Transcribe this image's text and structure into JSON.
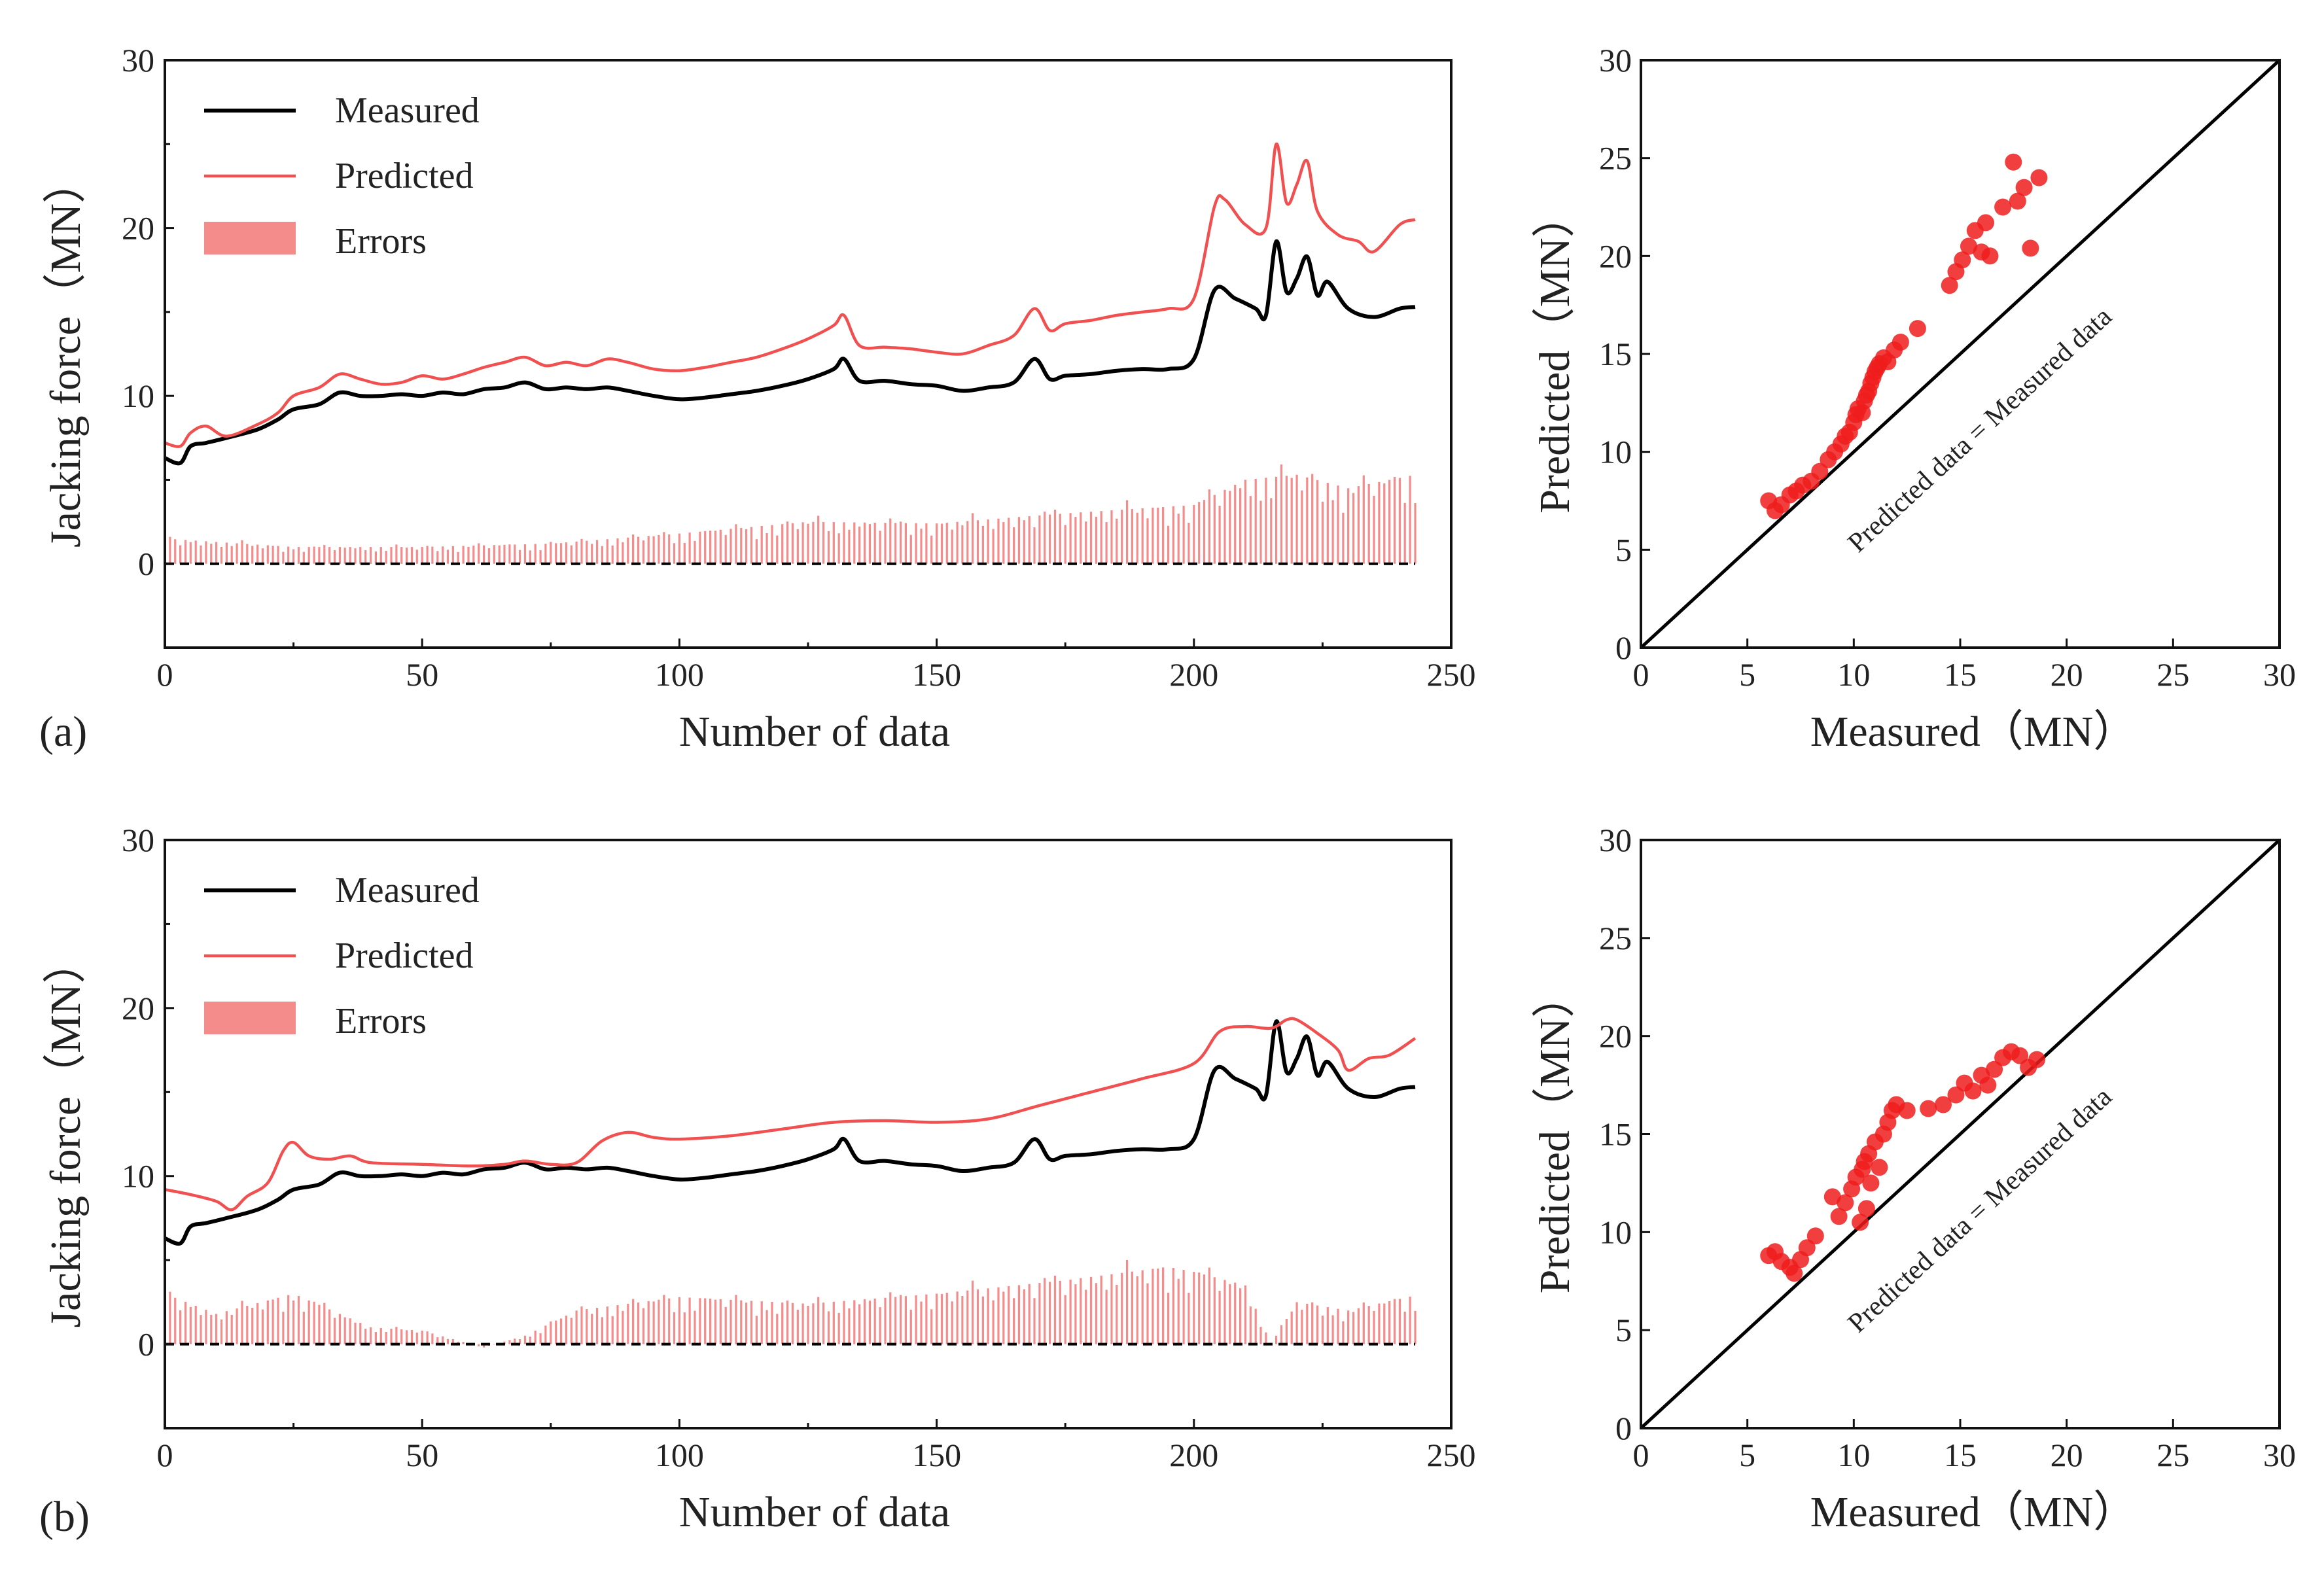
{
  "colors": {
    "measured": "#000000",
    "predicted": "#f05050",
    "errors": "#f58c8c",
    "scatter": "#ee1c1c",
    "axis": "#111111"
  },
  "figure": {
    "panel_labels": [
      "(a)",
      "(b)"
    ],
    "diagonal_label": "Predicted data = Measured data"
  },
  "chart_data": [
    {
      "id": "a-series",
      "type": "line",
      "panel": "(a)",
      "xlabel": "Number of data",
      "ylabel": "Jacking force（MN）",
      "xlim": [
        0,
        250
      ],
      "ylim": [
        -5,
        30
      ],
      "xticks": [
        0,
        50,
        100,
        150,
        200,
        250
      ],
      "yticks": [
        0,
        10,
        20,
        30
      ],
      "legend_position": "top-left",
      "zero_line": "dashed",
      "legend": [
        "Measured",
        "Predicted",
        "Errors"
      ],
      "series": [
        {
          "name": "Measured",
          "style": "line",
          "x": [
            0,
            3,
            5,
            8,
            12,
            18,
            22,
            25,
            30,
            34,
            38,
            42,
            46,
            50,
            54,
            58,
            62,
            66,
            70,
            74,
            78,
            82,
            86,
            90,
            95,
            100,
            105,
            110,
            115,
            120,
            125,
            130,
            132,
            135,
            140,
            145,
            150,
            155,
            160,
            165,
            169,
            172,
            175,
            180,
            185,
            190,
            195,
            200,
            204,
            208,
            212,
            214,
            216,
            218,
            220,
            222,
            224,
            226,
            230,
            235,
            240,
            243
          ],
          "y": [
            6.3,
            6.0,
            7.0,
            7.2,
            7.5,
            8.0,
            8.6,
            9.2,
            9.5,
            10.2,
            10.0,
            10.0,
            10.1,
            10.0,
            10.2,
            10.1,
            10.4,
            10.5,
            10.8,
            10.4,
            10.5,
            10.4,
            10.5,
            10.3,
            10.0,
            9.8,
            9.9,
            10.1,
            10.3,
            10.6,
            11.0,
            11.6,
            12.2,
            10.9,
            10.9,
            10.7,
            10.6,
            10.3,
            10.5,
            10.8,
            12.2,
            11.0,
            11.2,
            11.3,
            11.5,
            11.6,
            11.6,
            12.2,
            16.3,
            15.8,
            15.2,
            14.8,
            19.2,
            16.2,
            17.0,
            18.3,
            16.0,
            16.8,
            15.2,
            14.7,
            15.2,
            15.3
          ]
        },
        {
          "name": "Predicted",
          "style": "line",
          "x": [
            0,
            3,
            5,
            8,
            12,
            18,
            22,
            25,
            30,
            34,
            38,
            42,
            46,
            50,
            54,
            58,
            62,
            66,
            70,
            74,
            78,
            82,
            86,
            90,
            95,
            100,
            105,
            110,
            115,
            120,
            125,
            130,
            132,
            135,
            140,
            145,
            150,
            155,
            160,
            165,
            169,
            172,
            175,
            180,
            185,
            190,
            195,
            200,
            204,
            206,
            210,
            214,
            216,
            218,
            220,
            222,
            224,
            228,
            232,
            235,
            240,
            243
          ],
          "y": [
            7.2,
            7.0,
            7.8,
            8.2,
            7.6,
            8.3,
            9.0,
            10.0,
            10.5,
            11.3,
            11.0,
            10.7,
            10.8,
            11.2,
            11.0,
            11.3,
            11.7,
            12.0,
            12.3,
            11.8,
            12.0,
            11.8,
            12.2,
            12.0,
            11.6,
            11.5,
            11.7,
            12.0,
            12.3,
            12.8,
            13.4,
            14.2,
            14.8,
            13.0,
            12.9,
            12.8,
            12.6,
            12.5,
            13.0,
            13.6,
            15.2,
            13.9,
            14.3,
            14.5,
            14.8,
            15.0,
            15.2,
            15.8,
            21.3,
            21.7,
            20.2,
            20.0,
            25.0,
            21.5,
            22.6,
            24.0,
            21.0,
            19.6,
            19.2,
            18.6,
            20.2,
            20.5
          ]
        },
        {
          "name": "Errors",
          "style": "bar",
          "x": [
            0,
            25,
            50,
            75,
            100,
            125,
            150,
            175,
            200,
            210,
            220,
            230,
            243
          ],
          "y": [
            1.5,
            1.0,
            1.0,
            1.2,
            1.8,
            2.5,
            2.4,
            3.0,
            3.5,
            5.0,
            5.3,
            4.5,
            5.3
          ]
        }
      ]
    },
    {
      "id": "a-scatter",
      "type": "scatter",
      "panel": "(a)",
      "xlabel": "Measured（MN）",
      "ylabel": "Predicted（MN）",
      "xlim": [
        0,
        30
      ],
      "ylim": [
        0,
        30
      ],
      "xticks": [
        0,
        5,
        10,
        15,
        20,
        25,
        30
      ],
      "yticks": [
        0,
        5,
        10,
        15,
        20,
        25,
        30
      ],
      "diagonal": "Predicted data = Measured data",
      "points": {
        "x": [
          6.0,
          6.3,
          6.6,
          7.0,
          7.3,
          7.6,
          8.0,
          8.4,
          8.8,
          9.1,
          9.4,
          9.6,
          9.8,
          10.0,
          10.1,
          10.2,
          10.4,
          10.5,
          10.6,
          10.7,
          10.8,
          10.9,
          11.0,
          11.1,
          11.2,
          11.4,
          11.6,
          11.9,
          12.2,
          13.0,
          14.5,
          14.8,
          15.1,
          15.4,
          15.7,
          16.0,
          16.2,
          16.4,
          17.0,
          17.5,
          17.7,
          18.0,
          18.3,
          18.7
        ],
        "y": [
          7.5,
          7.0,
          7.3,
          7.8,
          8.0,
          8.3,
          8.5,
          9.0,
          9.6,
          10.0,
          10.4,
          10.8,
          11.0,
          11.5,
          11.9,
          12.2,
          12.0,
          12.6,
          12.9,
          13.1,
          13.5,
          13.8,
          14.1,
          14.3,
          14.5,
          14.8,
          14.6,
          15.2,
          15.6,
          16.3,
          18.5,
          19.2,
          19.8,
          20.5,
          21.3,
          20.2,
          21.7,
          20.0,
          22.5,
          24.8,
          22.8,
          23.5,
          20.4,
          24.0
        ]
      }
    },
    {
      "id": "b-series",
      "type": "line",
      "panel": "(b)",
      "xlabel": "Number of data",
      "ylabel": "Jacking force（MN）",
      "xlim": [
        0,
        250
      ],
      "ylim": [
        -5,
        30
      ],
      "xticks": [
        0,
        50,
        100,
        150,
        200,
        250
      ],
      "yticks": [
        0,
        10,
        20,
        30
      ],
      "legend_position": "top-left",
      "zero_line": "dashed",
      "legend": [
        "Measured",
        "Predicted",
        "Errors"
      ],
      "series": [
        {
          "name": "Measured",
          "style": "line",
          "x": [
            0,
            3,
            5,
            8,
            12,
            18,
            22,
            25,
            30,
            34,
            38,
            42,
            46,
            50,
            54,
            58,
            62,
            66,
            70,
            74,
            78,
            82,
            86,
            90,
            95,
            100,
            105,
            110,
            115,
            120,
            125,
            130,
            132,
            135,
            140,
            145,
            150,
            155,
            160,
            165,
            169,
            172,
            175,
            180,
            185,
            190,
            195,
            200,
            204,
            208,
            212,
            214,
            216,
            218,
            220,
            222,
            224,
            226,
            230,
            235,
            240,
            243
          ],
          "y": [
            6.3,
            6.0,
            7.0,
            7.2,
            7.5,
            8.0,
            8.6,
            9.2,
            9.5,
            10.2,
            10.0,
            10.0,
            10.1,
            10.0,
            10.2,
            10.1,
            10.4,
            10.5,
            10.8,
            10.4,
            10.5,
            10.4,
            10.5,
            10.3,
            10.0,
            9.8,
            9.9,
            10.1,
            10.3,
            10.6,
            11.0,
            11.6,
            12.2,
            10.9,
            10.9,
            10.7,
            10.6,
            10.3,
            10.5,
            10.8,
            12.2,
            11.0,
            11.2,
            11.3,
            11.5,
            11.6,
            11.6,
            12.2,
            16.3,
            15.8,
            15.2,
            14.8,
            19.2,
            16.2,
            17.0,
            18.3,
            16.0,
            16.8,
            15.2,
            14.7,
            15.2,
            15.3
          ]
        },
        {
          "name": "Predicted",
          "style": "line",
          "x": [
            0,
            5,
            10,
            13,
            16,
            20,
            23,
            25,
            28,
            32,
            36,
            40,
            50,
            60,
            66,
            70,
            75,
            80,
            85,
            90,
            95,
            100,
            110,
            120,
            130,
            140,
            150,
            160,
            170,
            180,
            190,
            200,
            205,
            210,
            215,
            218,
            220,
            224,
            228,
            230,
            234,
            238,
            243
          ],
          "y": [
            9.2,
            8.9,
            8.5,
            8.0,
            8.8,
            9.6,
            11.5,
            12.0,
            11.2,
            11.0,
            11.2,
            10.8,
            10.7,
            10.6,
            10.7,
            10.9,
            10.7,
            10.8,
            12.1,
            12.6,
            12.3,
            12.2,
            12.4,
            12.8,
            13.2,
            13.3,
            13.2,
            13.4,
            14.2,
            15.0,
            15.8,
            16.7,
            18.6,
            18.9,
            18.8,
            19.3,
            19.3,
            18.5,
            17.5,
            16.3,
            17.0,
            17.2,
            18.2
          ]
        },
        {
          "name": "Errors",
          "style": "bar",
          "x": [
            0,
            10,
            25,
            40,
            50,
            62,
            70,
            80,
            100,
            125,
            150,
            175,
            195,
            200,
            210,
            215,
            220,
            230,
            243
          ],
          "y": [
            3.0,
            1.8,
            3.0,
            1.0,
            0.8,
            -0.2,
            0.5,
            2.0,
            2.8,
            2.4,
            3.0,
            3.8,
            4.6,
            4.3,
            3.5,
            0.0,
            2.5,
            2.0,
            2.9
          ]
        }
      ]
    },
    {
      "id": "b-scatter",
      "type": "scatter",
      "panel": "(b)",
      "xlabel": "Measured（MN）",
      "ylabel": "Predicted（MN）",
      "xlim": [
        0,
        30
      ],
      "ylim": [
        0,
        30
      ],
      "xticks": [
        0,
        5,
        10,
        15,
        20,
        25,
        30
      ],
      "yticks": [
        0,
        5,
        10,
        15,
        20,
        25,
        30
      ],
      "diagonal": "Predicted data = Measured data",
      "points": {
        "x": [
          6.0,
          6.3,
          6.6,
          7.0,
          7.2,
          7.5,
          7.8,
          8.2,
          9.0,
          9.3,
          9.6,
          9.9,
          10.1,
          10.3,
          10.4,
          10.5,
          10.6,
          10.7,
          10.8,
          11.0,
          11.2,
          11.4,
          11.6,
          11.8,
          12.0,
          12.5,
          13.5,
          14.2,
          14.8,
          15.2,
          15.6,
          16.0,
          16.3,
          16.6,
          17.0,
          17.4,
          17.8,
          18.2,
          18.6
        ],
        "y": [
          8.8,
          9.0,
          8.5,
          8.2,
          7.9,
          8.6,
          9.2,
          9.8,
          11.8,
          10.8,
          11.5,
          12.2,
          12.8,
          10.5,
          13.2,
          13.6,
          11.2,
          14.0,
          12.5,
          14.6,
          13.3,
          15.0,
          15.6,
          16.2,
          16.5,
          16.2,
          16.3,
          16.5,
          17.0,
          17.6,
          17.2,
          18.0,
          17.5,
          18.3,
          18.9,
          19.2,
          19.0,
          18.4,
          18.8
        ]
      }
    }
  ]
}
